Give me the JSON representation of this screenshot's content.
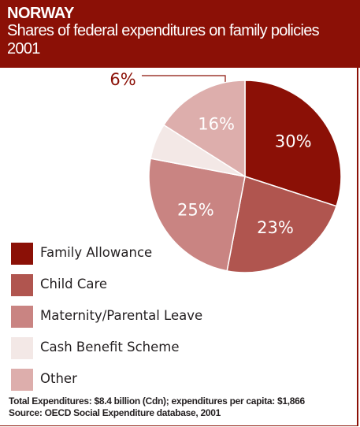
{
  "header": {
    "title": "NORWAY",
    "subtitle": "Shares of federal expenditures on family policies",
    "year": "2001"
  },
  "chart_data": {
    "type": "pie",
    "categories": [
      "Family Allowance",
      "Child Care",
      "Maternity/Parental Leave",
      "Cash Benefit Scheme",
      "Other"
    ],
    "values": [
      30,
      23,
      25,
      6,
      16
    ],
    "labels": [
      "30%",
      "23%",
      "25%",
      "6%",
      "16%"
    ],
    "colors": [
      "#8b1006",
      "#b0554f",
      "#c98482",
      "#f3e8e6",
      "#ddaeac"
    ],
    "label_colors": [
      "#ffffff",
      "#ffffff",
      "#ffffff",
      "#8b1006",
      "#ffffff"
    ],
    "legend_position": "left"
  },
  "footer": {
    "line1": "Total Expenditures: $8.4 billion (Cdn); expenditures per capita: $1,866",
    "line2": "Source: OECD Social Expenditure database, 2001"
  }
}
